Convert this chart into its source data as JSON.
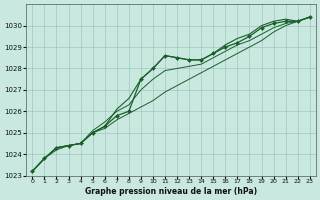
{
  "x": [
    0,
    1,
    2,
    3,
    4,
    5,
    6,
    7,
    8,
    9,
    10,
    11,
    12,
    13,
    14,
    15,
    16,
    17,
    18,
    19,
    20,
    21,
    22,
    23
  ],
  "series_marker": [
    1023.2,
    1023.8,
    1024.3,
    1024.4,
    1024.5,
    1025.0,
    1025.3,
    1025.8,
    1026.0,
    1027.5,
    1028.0,
    1028.6,
    1028.5,
    1028.4,
    1028.4,
    1028.7,
    1029.0,
    1029.2,
    1029.5,
    1029.9,
    1030.1,
    1030.2,
    1030.2,
    1030.4
  ],
  "series_high": [
    1023.2,
    1023.8,
    1024.3,
    1024.4,
    1024.5,
    1025.0,
    1025.3,
    1026.1,
    1026.6,
    1027.5,
    1028.0,
    1028.6,
    1028.5,
    1028.4,
    1028.4,
    1028.7,
    1029.1,
    1029.4,
    1029.6,
    1030.0,
    1030.2,
    1030.3,
    1030.2,
    1030.4
  ],
  "series_mid": [
    1023.2,
    1023.8,
    1024.3,
    1024.4,
    1024.5,
    1025.1,
    1025.5,
    1026.0,
    1026.3,
    1027.0,
    1027.5,
    1027.9,
    1028.0,
    1028.1,
    1028.2,
    1028.5,
    1028.8,
    1029.1,
    1029.3,
    1029.6,
    1029.9,
    1030.1,
    1030.2,
    1030.4
  ],
  "series_low": [
    1023.2,
    1023.8,
    1024.2,
    1024.4,
    1024.5,
    1025.0,
    1025.2,
    1025.6,
    1025.9,
    1026.2,
    1026.5,
    1026.9,
    1027.2,
    1027.5,
    1027.8,
    1028.1,
    1028.4,
    1028.7,
    1029.0,
    1029.3,
    1029.7,
    1030.0,
    1030.2,
    1030.4
  ],
  "bg_color": "#c8e8e0",
  "grid_color": "#a0c8c0",
  "line_color": "#1a5e2a",
  "xlabel": "Graphe pression niveau de la mer (hPa)",
  "ylim": [
    1023.0,
    1031.0
  ],
  "xlim_min": -0.5,
  "xlim_max": 23.5,
  "yticks": [
    1023,
    1024,
    1025,
    1026,
    1027,
    1028,
    1029,
    1030
  ],
  "xticks": [
    0,
    1,
    2,
    3,
    4,
    5,
    6,
    7,
    8,
    9,
    10,
    11,
    12,
    13,
    14,
    15,
    16,
    17,
    18,
    19,
    20,
    21,
    22,
    23
  ]
}
